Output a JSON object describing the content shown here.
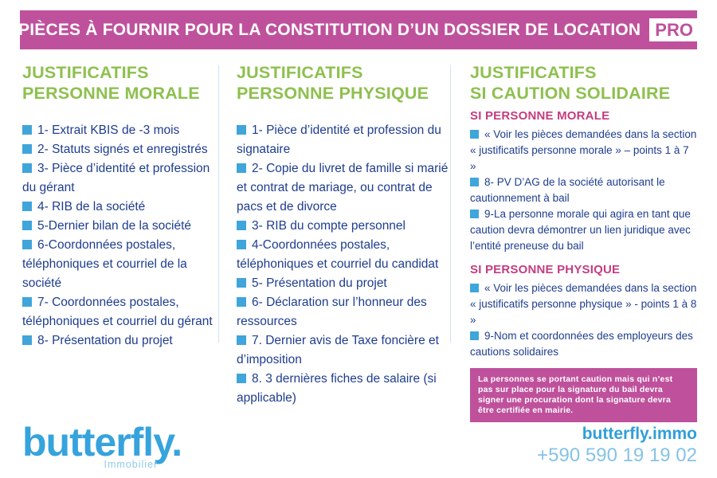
{
  "header": {
    "title": "PIÈCES À FOURNIR POUR LA CONSTITUTION D’UN DOSSIER DE LOCATION",
    "badge": "PRO"
  },
  "columns": [
    {
      "heading1": "JUSTIFICATIFS",
      "heading2": "PERSONNE MORALE",
      "items": [
        "1- Extrait KBIS de -3 mois",
        "2- Statuts signés et enregistrés",
        "3- Pièce d’identité et profession du gérant",
        "4- RIB de la société",
        "5-Dernier bilan de la société",
        "6-Coordonnées postales, téléphoniques et courriel de la société",
        "7- Coordonnées postales, téléphoniques et courriel du gérant",
        "8- Présentation du projet"
      ]
    },
    {
      "heading1": "JUSTIFICATIFS",
      "heading2": "PERSONNE PHYSIQUE",
      "items": [
        "1- Pièce d’identité et profession du signataire",
        "2- Copie du livret de famille si marié et contrat de mariage, ou contrat de pacs et de divorce",
        "3- RIB du compte personnel",
        "4-Coordonnées postales, téléphoniques et courriel du candidat",
        "5- Présentation du projet",
        "6- Déclaration sur l’honneur des ressources",
        "7. Dernier avis de Taxe foncière et d’imposition",
        "8. 3 dernières fiches de salaire (si applicable)"
      ]
    },
    {
      "heading1": "JUSTIFICATIFS",
      "heading2": "SI CAUTION SOLIDAIRE",
      "sections": [
        {
          "subheading": "SI PERSONNE MORALE",
          "items": [
            "« Voir les pièces demandées dans la section « justificatifs personne morale » – points 1 à 7 »",
            "8- PV D’AG de la société autorisant le cautionnement à bail",
            "9-La personne morale qui agira en tant que caution devra démontrer un lien juridique avec l’entité preneuse du bail"
          ]
        },
        {
          "subheading": "SI PERSONNE PHYSIQUE",
          "items": [
            "« Voir les pièces demandées dans la section « justificatifs personne physique » - points 1 à 8 »",
            "9-Nom et coordonnées des employeurs des cautions solidaires"
          ]
        }
      ],
      "note": "La personnes se portant caution mais qui n’est pas sur place pour la signature du bail devra signer une procuration dont la signature devra être certifiée en mairie."
    }
  ],
  "footer": {
    "logo": "butterfly.",
    "logo_tagline": "Immobilier",
    "website": "butterfly.immo",
    "phone": "+590 590 19 19 02"
  },
  "colors": {
    "magenta": "#bf519c",
    "green": "#8ec04f",
    "dark_blue": "#1e3d8f",
    "sky_blue": "#3fa5da",
    "pink_subheading": "#c33d7f",
    "logo_blue": "#36a3dc",
    "pale_blue": "#85c3e7"
  }
}
